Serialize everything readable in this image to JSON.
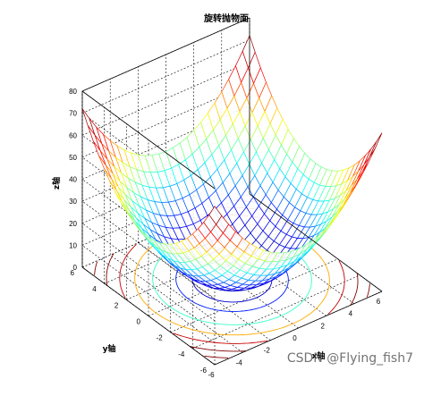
{
  "watermark": "CSDN @Flying_fish7",
  "chart_data": {
    "type": "surface",
    "function": "z = x^2 + y^2",
    "title": "旋转抛物面",
    "xlabel": "x轴",
    "ylabel": "y轴",
    "zlabel": "z轴",
    "xlim": [
      -6,
      6
    ],
    "ylim": [
      -6,
      6
    ],
    "zlim": [
      0,
      80
    ],
    "x_ticks": [
      -6,
      -4,
      -2,
      0,
      2,
      4,
      6
    ],
    "y_ticks": [
      -6,
      -4,
      -2,
      0,
      2,
      4,
      6
    ],
    "z_ticks": [
      0,
      10,
      20,
      30,
      40,
      50,
      60,
      70,
      80
    ],
    "mesh_domain": [
      -6,
      6
    ],
    "mesh_step": 0.5,
    "contour_levels": [
      5,
      10,
      20,
      30,
      40,
      50,
      60,
      70
    ],
    "grid": true,
    "colormap": "jet",
    "colormap_stops": [
      "#00008f",
      "#0000ff",
      "#00ffff",
      "#ffff00",
      "#ff0000",
      "#800000"
    ]
  }
}
